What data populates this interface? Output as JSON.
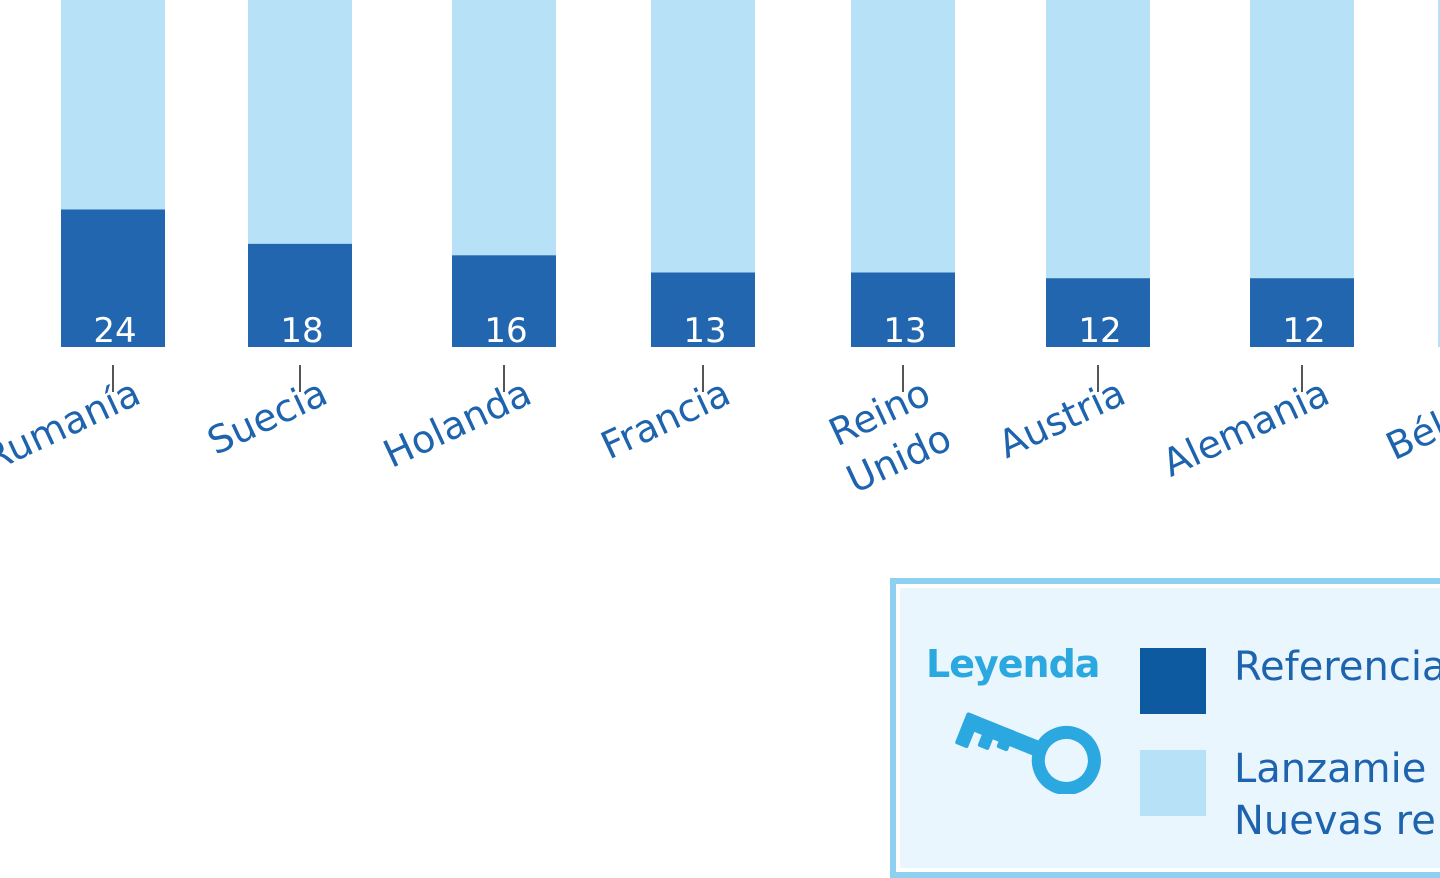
{
  "colors": {
    "referencia": "#2366b0",
    "lanzamientos": "#b7e1f6",
    "bar_value_text": "#ffffff",
    "category_text": "#1e63ad",
    "tick": "#555555",
    "legend_title": "#2ba8df",
    "legend_border": "#8fd0f0",
    "legend_bg": "#eaf6fd"
  },
  "chart_data": {
    "type": "bar",
    "stacked": true,
    "categories": [
      "Rumanía",
      "Suecia",
      "Holanda",
      "Francia",
      "Reino Unido",
      "Austria",
      "Alemania",
      "Bélgica"
    ],
    "category_lines": [
      [
        "Rumanía"
      ],
      [
        "Suecia"
      ],
      [
        "Holanda"
      ],
      [
        "Francia"
      ],
      [
        "Reino",
        "Unido"
      ],
      [
        "Austria"
      ],
      [
        "Alemania"
      ],
      [
        "Bélgica"
      ]
    ],
    "series": [
      {
        "name": "Referencia",
        "values": [
          24,
          18,
          16,
          13,
          13,
          12,
          12,
          null
        ]
      },
      {
        "name": "Lanzamientos",
        "values": [
          null,
          null,
          null,
          null,
          null,
          null,
          null,
          null
        ]
      }
    ],
    "data_labels": [
      "24",
      "18",
      "16",
      "13",
      "13",
      "12",
      "12",
      ""
    ],
    "bar_colors": [
      "#2366b0",
      "#b7e1f6"
    ]
  },
  "legend": {
    "title": "Leyenda",
    "icon": "key-icon",
    "items": [
      {
        "label": "Referencia"
      },
      {
        "label": "Lanzamie"
      },
      {
        "label": "Nuevas re"
      }
    ]
  }
}
